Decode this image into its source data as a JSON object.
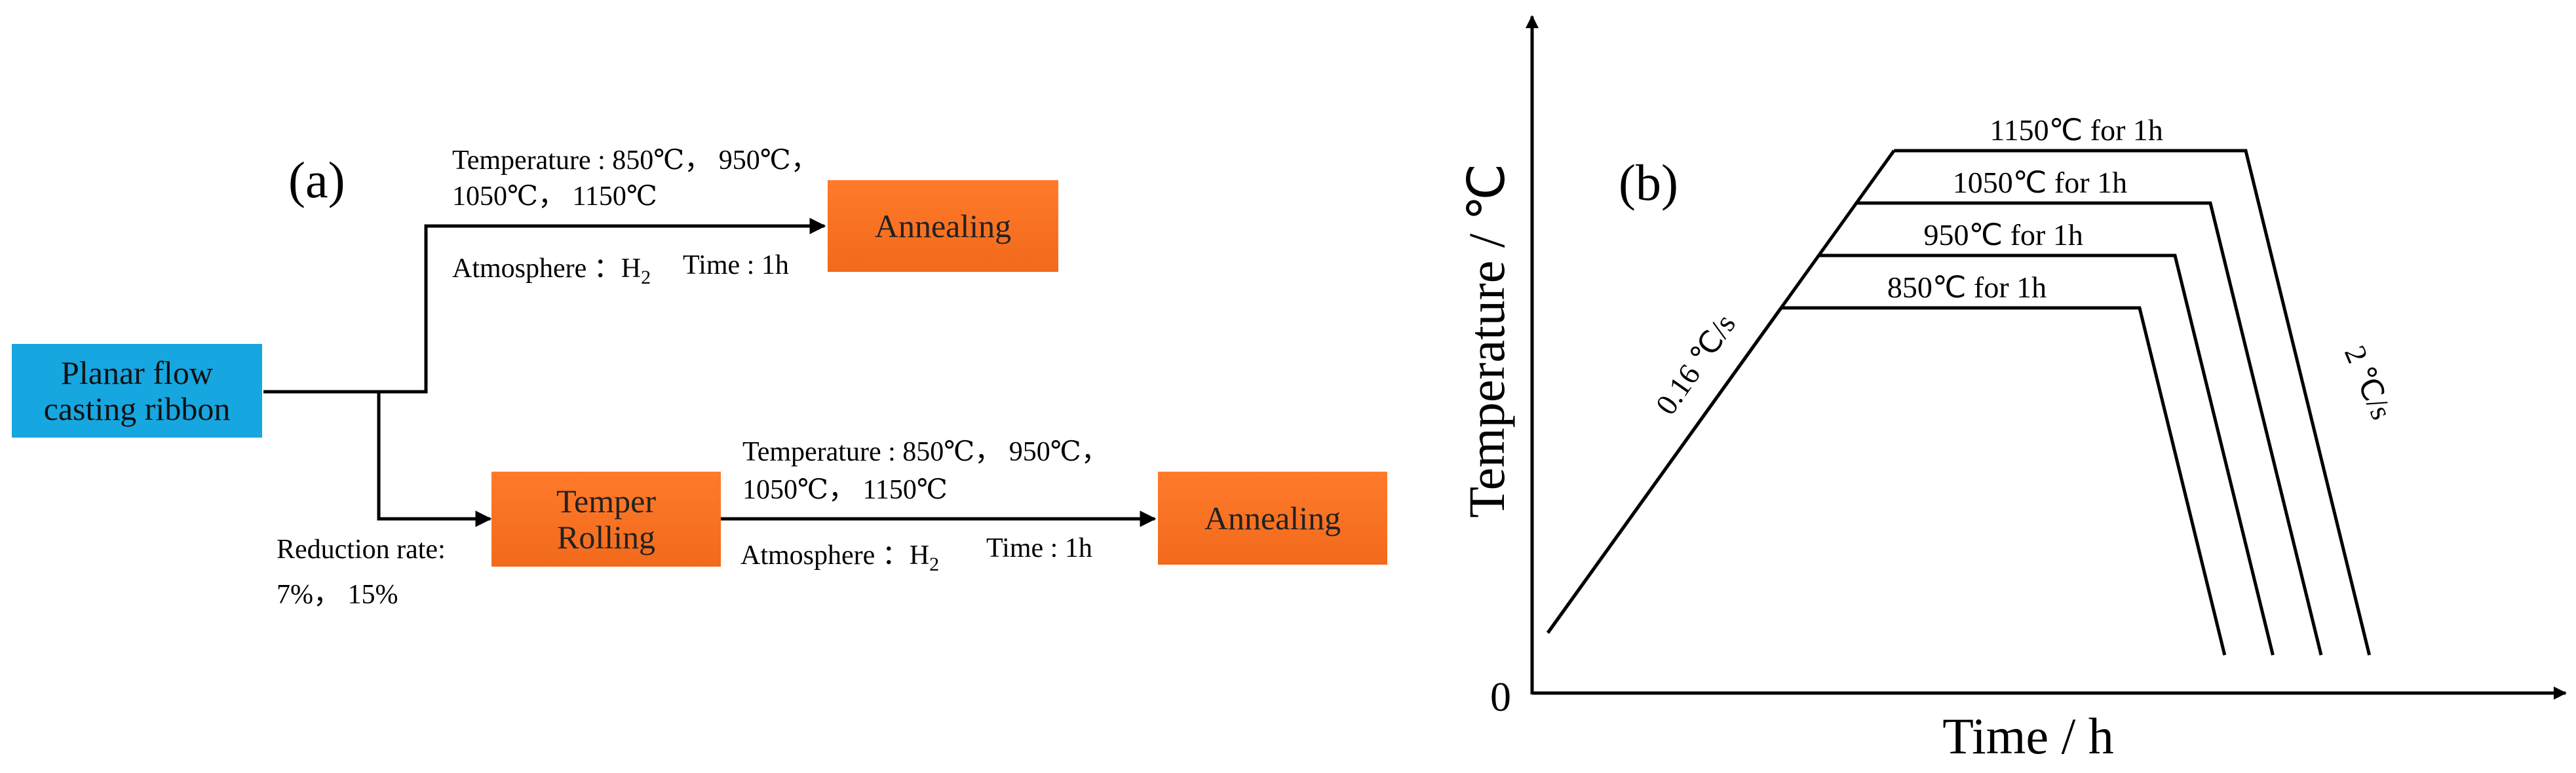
{
  "panel_a": {
    "label": "(a)",
    "source_box": "Planar flow casting ribbon",
    "source_line1": "Planar flow",
    "source_line2": "casting ribbon",
    "top_branch": {
      "temperature": "Temperature : 850℃， 950℃，",
      "temperature_cont": "1050℃， 1150℃",
      "atmosphere_prefix": "Atmosphere ：H",
      "atmosphere_sub": "2",
      "time": "Time : 1h",
      "target": "Annealing"
    },
    "bottom_branch": {
      "reduction_label": "Reduction rate:",
      "reduction_values": "7%， 15%",
      "rolling_line1": "Temper",
      "rolling_line2": "Rolling",
      "temperature": "Temperature : 850℃， 950℃，",
      "temperature_cont": "1050℃， 1150℃",
      "atmosphere_prefix": "Atmosphere ：H",
      "atmosphere_sub": "2",
      "time": "Time : 1h",
      "target": "Annealing"
    }
  },
  "panel_b": {
    "label": "(b)",
    "ylabel": "Temperature / ℃",
    "xlabel": "Time / h",
    "origin_label": "0",
    "heating_rate": "0.16 ℃/s",
    "cooling_rate": "2 ℃/s",
    "holds": [
      {
        "temperature_c": 850,
        "label": "850℃ for 1h"
      },
      {
        "temperature_c": 950,
        "label": "950℃ for 1h"
      },
      {
        "temperature_c": 1050,
        "label": "1050℃ for 1h"
      },
      {
        "temperature_c": 1150,
        "label": "1150℃ for 1h"
      }
    ],
    "hold_time_h": 1
  },
  "colors": {
    "source_box": "#16a6e0",
    "process_box": "#f26a1c",
    "line": "#000000"
  }
}
